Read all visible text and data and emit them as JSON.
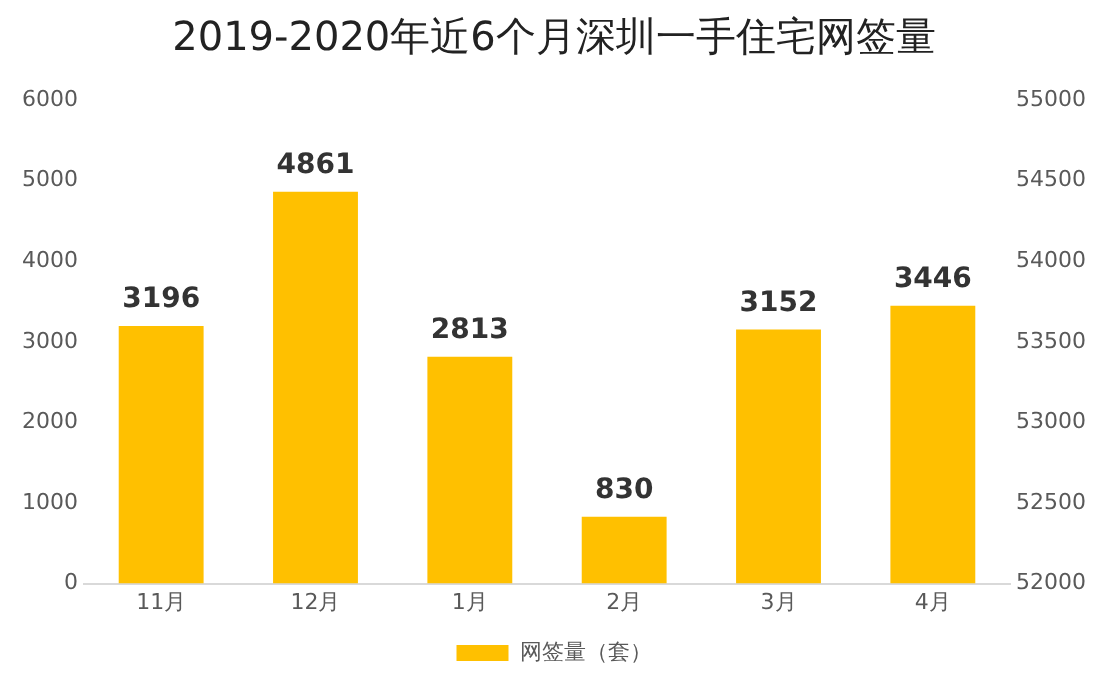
{
  "chart_data": {
    "type": "bar",
    "title": "2019-2020年近6个月深圳一手住宅网签量",
    "categories": [
      "11月",
      "12月",
      "1月",
      "2月",
      "3月",
      "4月"
    ],
    "series": [
      {
        "name": "网签量（套）",
        "color": "#ffc000",
        "values": [
          3196,
          4861,
          2813,
          830,
          3152,
          3446
        ]
      }
    ],
    "ylim": [
      0,
      6000
    ],
    "yticks": [
      0,
      1000,
      2000,
      3000,
      4000,
      5000,
      6000
    ],
    "y2lim": [
      52000,
      55000
    ],
    "y2ticks": [
      52000,
      52500,
      53000,
      53500,
      54000,
      54500,
      55000
    ],
    "data_labels": true,
    "grid": false,
    "legend": "bottom"
  }
}
